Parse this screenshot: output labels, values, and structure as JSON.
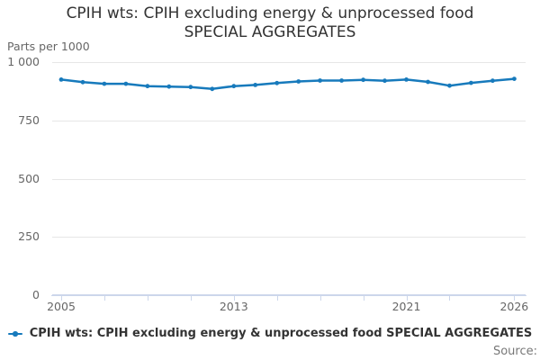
{
  "title": {
    "line1": "CPIH wts: CPIH excluding energy & unprocessed food",
    "line2": "SPECIAL AGGREGATES"
  },
  "axis_unit_label": "Parts per 1000",
  "legend": {
    "label": "CPIH wts: CPIH excluding energy & unprocessed food SPECIAL AGGREGATES",
    "marker": "line-with-dot-icon"
  },
  "source_label": "Source:",
  "colors": {
    "line": "#177abc",
    "grid": "#e6e6e6",
    "axis": "#ccd6eb",
    "tick_text": "#666666",
    "title_text": "#333333",
    "legend_text": "#333333",
    "source_text": "#777777"
  },
  "chart_data": {
    "type": "line",
    "title": "CPIH wts: CPIH excluding energy & unprocessed food SPECIAL AGGREGATES",
    "ylabel": "Parts per 1000",
    "xlabel": "",
    "ylim": [
      0,
      1000
    ],
    "grid": "horizontal",
    "legend_position": "bottom",
    "marker": "circle",
    "x": [
      2005,
      2006,
      2007,
      2008,
      2009,
      2010,
      2011,
      2012,
      2013,
      2014,
      2015,
      2016,
      2017,
      2018,
      2019,
      2020,
      2021,
      2022,
      2023,
      2024,
      2025,
      2026
    ],
    "series": [
      {
        "name": "CPIH wts: CPIH excluding energy & unprocessed food SPECIAL AGGREGATES",
        "values": [
          925,
          914,
          907,
          907,
          897,
          895,
          893,
          885,
          897,
          902,
          910,
          917,
          921,
          921,
          924,
          920,
          925,
          915,
          899,
          911,
          920,
          928
        ]
      }
    ],
    "yticks": [
      {
        "value": 1000,
        "label": "1 000"
      },
      {
        "value": 750,
        "label": "750"
      },
      {
        "value": 500,
        "label": "500"
      },
      {
        "value": 250,
        "label": "250"
      },
      {
        "value": 0,
        "label": "0"
      }
    ],
    "xticks_marks": [
      2005,
      2007,
      2009,
      2011,
      2013,
      2015,
      2017,
      2019,
      2021,
      2023,
      2026
    ],
    "xticks_labeled": [
      2005,
      2013,
      2021,
      2026
    ]
  }
}
